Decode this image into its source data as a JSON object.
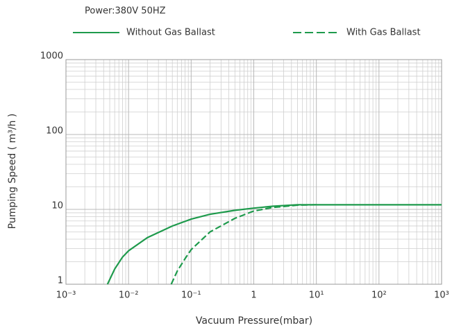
{
  "chart_data": {
    "type": "line",
    "subtitle": "Power:380V   50HZ",
    "x_label": "Vacuum Pressure(mbar)",
    "y_label": "Pumping Speed ( m³/h )",
    "log_x": true,
    "log_y": true,
    "grid": true,
    "legend": "top",
    "xlim": [
      0.001,
      1000
    ],
    "ylim": [
      1,
      1000
    ],
    "xticks": [
      {
        "value": 0.001,
        "label": "10⁻³"
      },
      {
        "value": 0.01,
        "label": "10⁻²"
      },
      {
        "value": 0.1,
        "label": "10⁻¹"
      },
      1,
      {
        "value": 10,
        "label": "10¹"
      },
      {
        "value": 100,
        "label": "10²"
      },
      {
        "value": 1000,
        "label": "10³"
      }
    ],
    "yticks": [
      1,
      10,
      100,
      1000
    ],
    "series": [
      {
        "name": "Without Gas Ballast",
        "color": "#1e9a4c",
        "dash": "solid",
        "x": [
          0.0046,
          0.006,
          0.008,
          0.01,
          0.02,
          0.05,
          0.1,
          0.2,
          0.5,
          1,
          2,
          5,
          10,
          100,
          1000
        ],
        "values": [
          1,
          1.6,
          2.3,
          2.8,
          4.2,
          6,
          7.4,
          8.6,
          9.7,
          10.4,
          11,
          11.5,
          11.5,
          11.5,
          11.5
        ]
      },
      {
        "name": "With Gas Ballast",
        "color": "#1e9a4c",
        "dash": "dashed",
        "x": [
          0.048,
          0.06,
          0.08,
          0.1,
          0.2,
          0.5,
          1,
          2,
          5,
          10
        ],
        "values": [
          1,
          1.5,
          2.2,
          2.9,
          5,
          7.6,
          9.5,
          10.6,
          11.4,
          11.5
        ]
      }
    ]
  }
}
